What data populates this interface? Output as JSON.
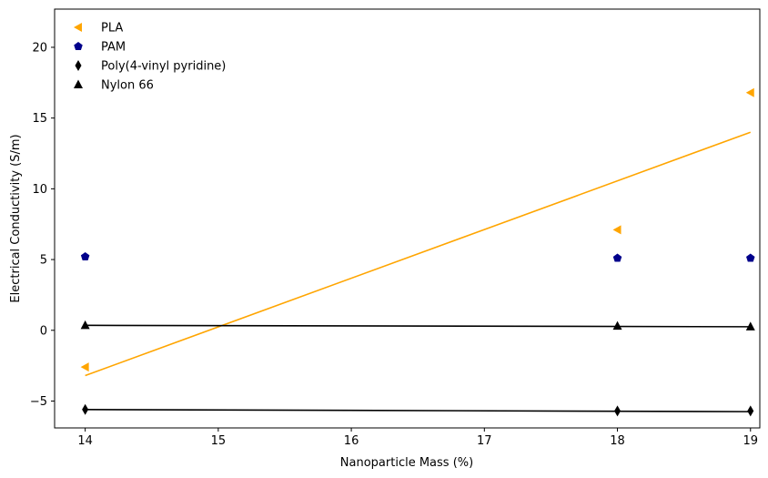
{
  "chart_data": {
    "type": "scatter",
    "xlabel": "Nanoparticle Mass (%)",
    "ylabel": "Electrical Conductivity (S/m)",
    "xlim": [
      13.77,
      19.07
    ],
    "ylim": [
      -6.9,
      22.7
    ],
    "xticks": [
      14,
      15,
      16,
      17,
      18,
      19
    ],
    "yticks": [
      -5,
      0,
      5,
      10,
      15,
      20
    ],
    "grid": false,
    "legend_position": "top-left",
    "series": [
      {
        "name": "PLA",
        "marker": "triangle-left",
        "color": "#FFA500",
        "x": [
          14,
          18,
          19
        ],
        "y": [
          -2.6,
          7.1,
          16.8
        ],
        "fit": {
          "x": [
            14,
            19
          ],
          "y": [
            -3.2,
            14.0
          ]
        }
      },
      {
        "name": "PAM",
        "marker": "pentagon",
        "color": "#00008B",
        "x": [
          14,
          18,
          19
        ],
        "y": [
          5.2,
          5.1,
          5.1
        ]
      },
      {
        "name": "Poly(4-vinyl pyridine)",
        "marker": "thin-diamond",
        "color": "#000000",
        "x": [
          14,
          18,
          19
        ],
        "y": [
          -5.6,
          -5.7,
          -5.7
        ],
        "fit": {
          "x": [
            14,
            19
          ],
          "y": [
            -5.6,
            -5.75
          ]
        }
      },
      {
        "name": "Nylon 66",
        "marker": "triangle-up",
        "color": "#000000",
        "x": [
          14,
          18,
          19
        ],
        "y": [
          0.35,
          0.3,
          0.25
        ],
        "fit": {
          "x": [
            14,
            19
          ],
          "y": [
            0.35,
            0.25
          ]
        }
      }
    ]
  }
}
